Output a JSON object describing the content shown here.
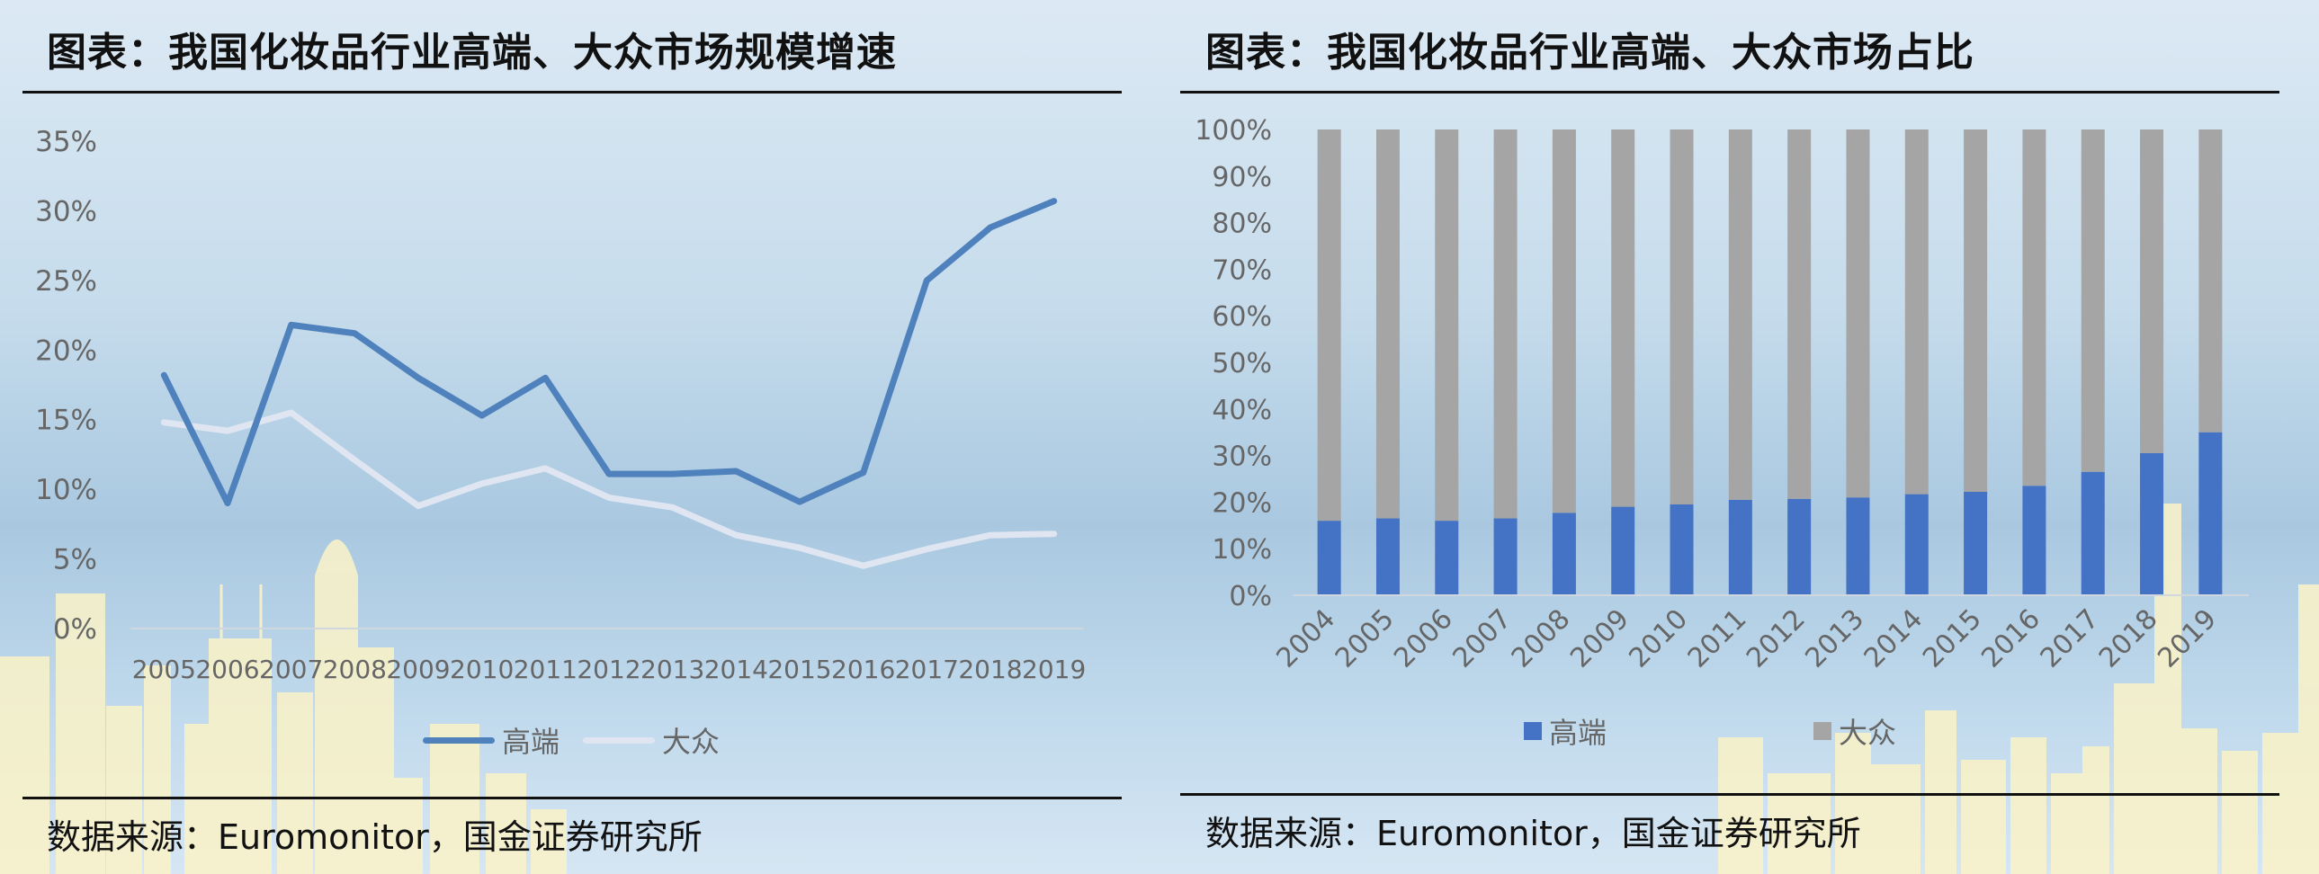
{
  "left": {
    "title": "图表：我国化妆品行业高端、大众市场规模增速",
    "source": "数据来源：Euromonitor，国金证券研究所",
    "legend": {
      "premium": "高端",
      "mass": "大众"
    }
  },
  "right": {
    "title": "图表：我国化妆品行业高端、大众市场占比",
    "source": "数据来源：Euromonitor，国金证券研究所",
    "legend": {
      "premium": "高端",
      "mass": "大众"
    }
  },
  "colors": {
    "premium_line": "#4f81bd",
    "mass_line": "#dfe6f1",
    "premium_bar": "#4472c4",
    "mass_bar": "#a5a5a5",
    "axis_text": "#666666"
  },
  "chart_data": [
    {
      "type": "line",
      "x": [
        "2005",
        "2006",
        "2007",
        "2008",
        "2009",
        "2010",
        "2011",
        "2012",
        "2013",
        "2014",
        "2015",
        "2016",
        "2017",
        "2018",
        "2019"
      ],
      "series": [
        {
          "name": "高端",
          "values": [
            0.182,
            0.09,
            0.218,
            0.212,
            0.18,
            0.153,
            0.18,
            0.111,
            0.111,
            0.113,
            0.091,
            0.112,
            0.25,
            0.288,
            0.307
          ]
        },
        {
          "name": "大众",
          "values": [
            0.148,
            0.142,
            0.155,
            0.121,
            0.088,
            0.104,
            0.115,
            0.094,
            0.087,
            0.067,
            0.058,
            0.045,
            0.057,
            0.067,
            0.068
          ]
        }
      ],
      "yticks": [
        "0%",
        "5%",
        "10%",
        "15%",
        "20%",
        "25%",
        "30%",
        "35%"
      ],
      "ylim": [
        0,
        0.35
      ],
      "grid": false,
      "legend_position": "bottom"
    },
    {
      "type": "bar",
      "stacked": true,
      "categories": [
        "2004",
        "2005",
        "2006",
        "2007",
        "2008",
        "2009",
        "2010",
        "2011",
        "2012",
        "2013",
        "2014",
        "2015",
        "2016",
        "2017",
        "2018",
        "2019"
      ],
      "series": [
        {
          "name": "高端",
          "values": [
            0.16,
            0.165,
            0.16,
            0.165,
            0.177,
            0.19,
            0.195,
            0.205,
            0.207,
            0.21,
            0.217,
            0.222,
            0.235,
            0.265,
            0.305,
            0.35
          ]
        },
        {
          "name": "大众",
          "values": [
            0.84,
            0.835,
            0.84,
            0.835,
            0.823,
            0.81,
            0.805,
            0.795,
            0.793,
            0.79,
            0.783,
            0.778,
            0.765,
            0.735,
            0.695,
            0.65
          ]
        }
      ],
      "yticks": [
        "0%",
        "10%",
        "20%",
        "30%",
        "40%",
        "50%",
        "60%",
        "70%",
        "80%",
        "90%",
        "100%"
      ],
      "ylim": [
        0,
        1
      ],
      "grid": false,
      "legend_position": "bottom"
    }
  ]
}
